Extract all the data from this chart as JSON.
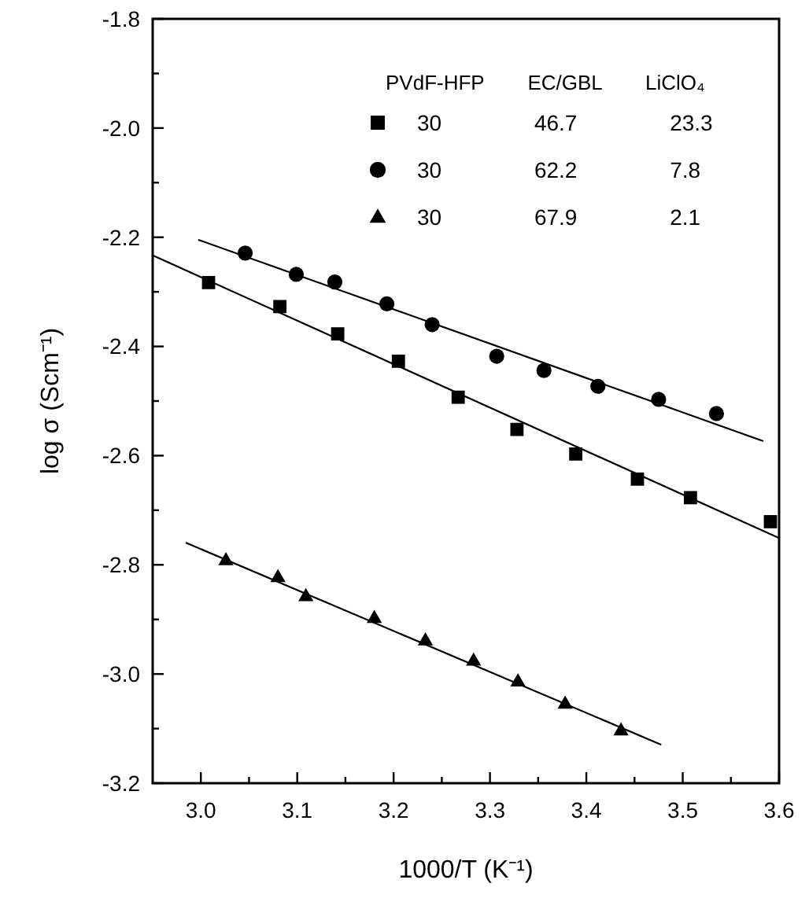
{
  "chart_data": {
    "type": "scatter",
    "xlabel": "1000/T (K⁻¹)",
    "ylabel": "log σ (Scm⁻¹)",
    "legend_title": "PVdF-HFP EC/GBL LiClO₄",
    "legend": "top right",
    "grid": false,
    "xlim": [
      2.95,
      3.6
    ],
    "ylim": [
      -3.2,
      -1.8
    ],
    "xticks": [
      {
        "value": 3.0,
        "label": "3.0"
      },
      {
        "value": 3.05,
        "label": null
      },
      {
        "value": 3.1,
        "label": "3.1"
      },
      {
        "value": 3.15,
        "label": null
      },
      {
        "value": 3.2,
        "label": "3.2"
      },
      {
        "value": 3.25,
        "label": null
      },
      {
        "value": 3.3,
        "label": "3.3"
      },
      {
        "value": 3.35,
        "label": null
      },
      {
        "value": 3.4,
        "label": "3.4"
      },
      {
        "value": 3.45,
        "label": null
      },
      {
        "value": 3.5,
        "label": "3.5"
      },
      {
        "value": 3.55,
        "label": null
      },
      {
        "value": 3.6,
        "label": "3.6"
      }
    ],
    "yticks": [
      {
        "value": -1.8,
        "label": "-1.8"
      },
      {
        "value": -1.9,
        "label": null
      },
      {
        "value": -2.0,
        "label": "-2.0"
      },
      {
        "value": -2.1,
        "label": null
      },
      {
        "value": -2.2,
        "label": "-2.2"
      },
      {
        "value": -2.3,
        "label": null
      },
      {
        "value": -2.4,
        "label": "-2.4"
      },
      {
        "value": -2.5,
        "label": null
      },
      {
        "value": -2.6,
        "label": "-2.6"
      },
      {
        "value": -2.7,
        "label": null
      },
      {
        "value": -2.8,
        "label": "-2.8"
      },
      {
        "value": -2.9,
        "label": null
      },
      {
        "value": -3.0,
        "label": "-3.0"
      },
      {
        "value": -3.1,
        "label": null
      },
      {
        "value": -3.2,
        "label": "-3.2"
      }
    ],
    "series": [
      {
        "name": "30 46.7 23.3",
        "marker": "square",
        "color": "#000000",
        "x": [
          3.008,
          3.082,
          3.142,
          3.205,
          3.267,
          3.328,
          3.389,
          3.453,
          3.508,
          3.591
        ],
        "values": [
          -2.283,
          -2.327,
          -2.377,
          -2.427,
          -2.493,
          -2.552,
          -2.597,
          -2.643,
          -2.677,
          -2.721
        ]
      },
      {
        "name": "30 62.2 7.8",
        "marker": "circle",
        "color": "#000000",
        "x": [
          3.046,
          3.099,
          3.139,
          3.193,
          3.24,
          3.307,
          3.356,
          3.412,
          3.475,
          3.535
        ],
        "values": [
          -2.229,
          -2.268,
          -2.282,
          -2.322,
          -2.36,
          -2.418,
          -2.444,
          -2.473,
          -2.497,
          -2.523
        ]
      },
      {
        "name": "30 67.9 2.1",
        "marker": "triangle",
        "color": "#000000",
        "x": [
          3.026,
          3.08,
          3.109,
          3.18,
          3.233,
          3.283,
          3.329,
          3.378,
          3.436
        ],
        "values": [
          -2.791,
          -2.822,
          -2.857,
          -2.897,
          -2.938,
          -2.975,
          -3.013,
          -3.054,
          -3.103
        ]
      },
      {
        "type": "line",
        "marker": "none",
        "line_style": "solid",
        "color": "#000000",
        "x": [
          2.951,
          3.6
        ],
        "values": [
          -2.234,
          -2.751
        ]
      },
      {
        "type": "line",
        "marker": "none",
        "line_style": "solid",
        "color": "#000000",
        "x": [
          2.998,
          3.583
        ],
        "values": [
          -2.205,
          -2.573
        ]
      },
      {
        "type": "line",
        "marker": "none",
        "line_style": "solid",
        "color": "#000000",
        "x": [
          2.985,
          3.477
        ],
        "values": [
          -2.76,
          -3.129
        ]
      }
    ]
  }
}
